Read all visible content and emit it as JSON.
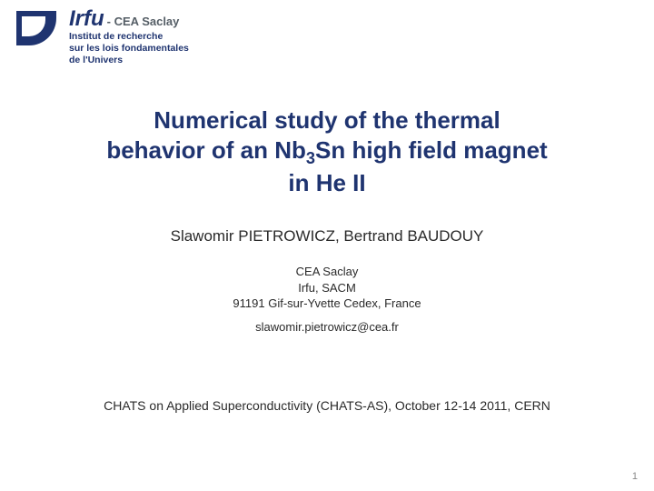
{
  "logo": {
    "name": "Irfu",
    "suffix": "- CEA Saclay",
    "sub1": "Institut de recherche",
    "sub2": "sur les lois fondamentales",
    "sub3": "de l'Univers"
  },
  "title": {
    "line1": "Numerical study of the thermal",
    "line2_pre": "behavior of an Nb",
    "line2_sub": "3",
    "line2_post": "Sn high field magnet",
    "line3": "in He II"
  },
  "authors": "Slawomir PIETROWICZ, Bertrand BAUDOUY",
  "affil": {
    "l1": "CEA Saclay",
    "l2": "Irfu, SACM",
    "l3": "91191 Gif-sur-Yvette Cedex, France"
  },
  "email": "slawomir.pietrowicz@cea.fr",
  "conference": "CHATS on Applied Superconductivity (CHATS-AS), October 12-14 2011, CERN",
  "page_number": "1",
  "colors": {
    "brand": "#1f3470",
    "text": "#2a2a2a",
    "muted": "#888888",
    "bg": "#ffffff"
  }
}
